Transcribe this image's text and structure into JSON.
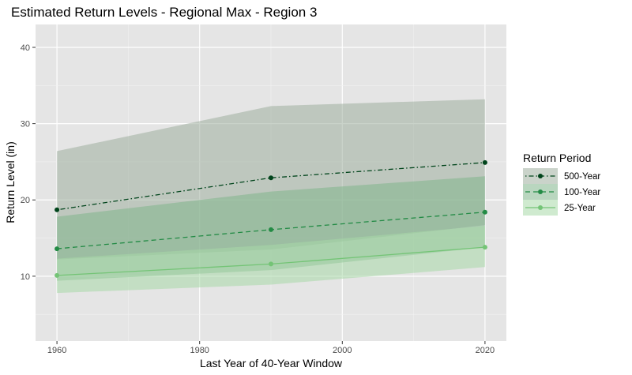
{
  "chart_data": {
    "type": "line",
    "title": "Estimated Return Levels - Regional Max - Region 3",
    "xlabel": "Last Year of 40-Year Window",
    "ylabel": "Return Level (in)",
    "xlim": [
      1957,
      2023
    ],
    "ylim": [
      1.5,
      43
    ],
    "x_ticks": [
      1960,
      1980,
      2000,
      2020
    ],
    "y_ticks": [
      10,
      20,
      30,
      40
    ],
    "x": [
      1960,
      1990,
      2020
    ],
    "grid": true,
    "background": "#e5e5e5",
    "legend": {
      "title": "Return Period",
      "position": "right"
    },
    "series": [
      {
        "name": "500-Year",
        "color": "#00441b",
        "linestyle": "dotdash",
        "values": [
          18.7,
          22.9,
          24.9
        ],
        "ci_lower": [
          12.2,
          13.5,
          16.7
        ],
        "ci_upper": [
          26.4,
          32.3,
          33.2
        ],
        "band_color": "#9eae9e"
      },
      {
        "name": "100-Year",
        "color": "#238b45",
        "linestyle": "dashed",
        "values": [
          13.6,
          16.1,
          18.4
        ],
        "ci_lower": [
          9.4,
          10.8,
          13.8
        ],
        "ci_upper": [
          17.8,
          21.1,
          23.1
        ],
        "band_color": "#7fb58a"
      },
      {
        "name": "25-Year",
        "color": "#74c476",
        "linestyle": "solid",
        "values": [
          10.1,
          11.6,
          13.8
        ],
        "ci_lower": [
          7.8,
          8.9,
          11.2
        ],
        "ci_upper": [
          12.3,
          14.1,
          16.6
        ],
        "band_color": "#a8d8a8"
      }
    ]
  }
}
